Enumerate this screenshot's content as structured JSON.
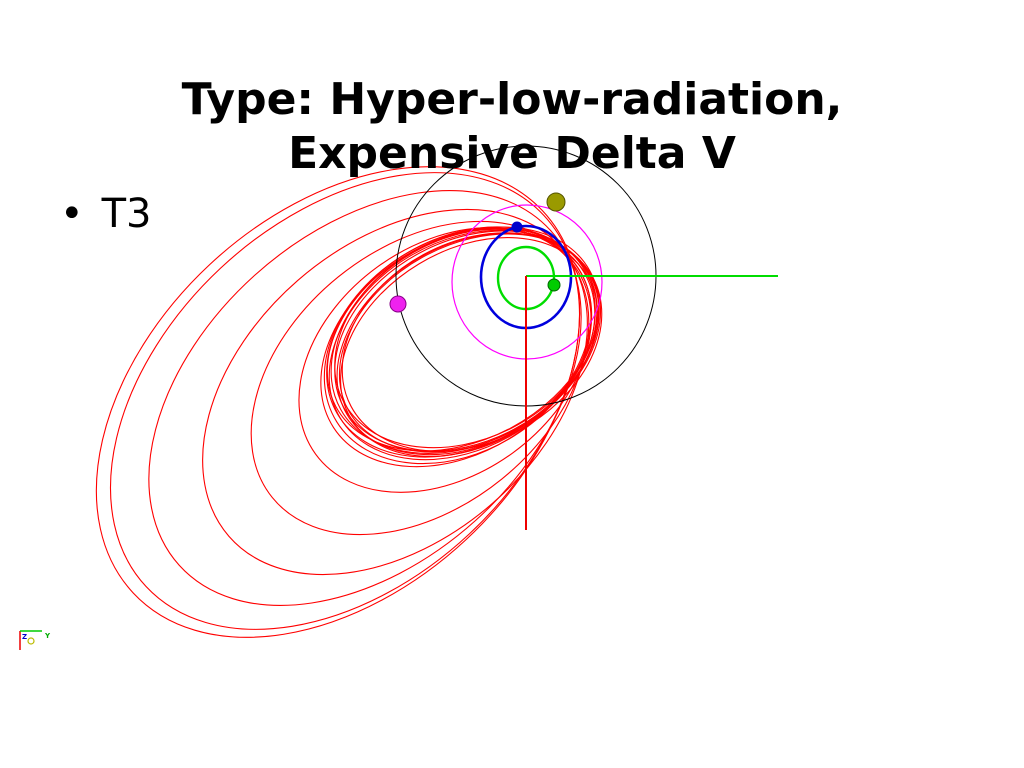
{
  "slide": {
    "title_line1": "Type: Hyper-low-radiation,",
    "title_line2": "Expensive Delta V"
  },
  "bullets": [
    {
      "label": "T3"
    }
  ],
  "axis_triad": {
    "z_label": "Z",
    "y_label": "Y"
  },
  "colors": {
    "trajectory": "#ff0000",
    "outer_orbit": "#000000",
    "magenta_orbit": "#ff00ff",
    "blue_orbit": "#0000dd",
    "green_orbit": "#00dd00",
    "x_axis": "#00dd00",
    "vertical_axis": "#ee0000",
    "planet_body": "#9a9a00",
    "magenta_moon": "#ee22ee",
    "blue_moon": "#0000cc",
    "green_moon": "#00cc00"
  }
}
